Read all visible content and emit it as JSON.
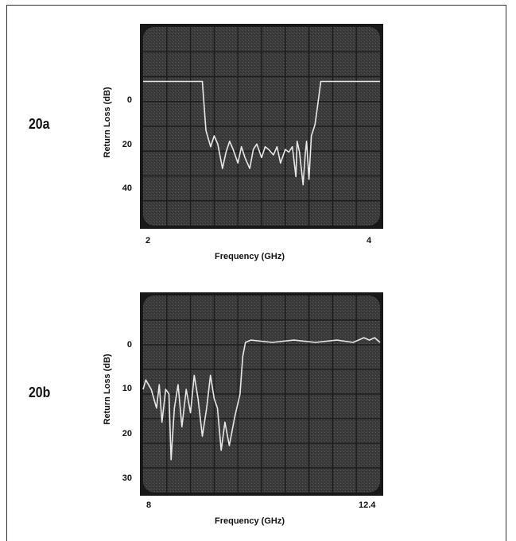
{
  "chart_data": [
    {
      "type": "line",
      "panel_label": "20a",
      "xlabel": "Frequency (GHz)",
      "ylabel": "Return Loss (dB)",
      "x_tick_labels": [
        "2",
        "4"
      ],
      "y_tick_labels": [
        "0",
        "20",
        "40"
      ],
      "xlim": [
        2,
        4
      ],
      "ylim": [
        -20,
        53
      ],
      "y_inverted": true,
      "series": [
        {
          "x": [
            2.0,
            2.3,
            2.45,
            2.5,
            2.53,
            2.57,
            2.6,
            2.63,
            2.67,
            2.7,
            2.73,
            2.76,
            2.8,
            2.83,
            2.86,
            2.9,
            2.93,
            2.96,
            3.0,
            3.03,
            3.06,
            3.1,
            3.13,
            3.16,
            3.2,
            3.23,
            3.26,
            3.29,
            3.3,
            3.32,
            3.35,
            3.37,
            3.38,
            3.4,
            3.42,
            3.45,
            3.47,
            3.5,
            3.55,
            3.6,
            3.7,
            4.0
          ],
          "y": [
            0,
            0,
            0,
            0,
            18,
            24,
            20,
            23,
            32,
            26,
            22,
            25,
            30,
            24,
            28,
            32,
            25,
            23,
            28,
            24,
            25,
            27,
            24,
            30,
            25,
            26,
            24,
            35,
            22,
            26,
            38,
            26,
            22,
            36,
            20,
            16,
            10,
            0,
            0,
            0,
            0,
            0
          ]
        }
      ]
    },
    {
      "type": "line",
      "panel_label": "20b",
      "xlabel": "Frequency (GHz)",
      "ylabel": "Return Loss (dB)",
      "x_tick_labels": [
        "8",
        "12.4"
      ],
      "y_tick_labels": [
        "0",
        "10",
        "20",
        "30"
      ],
      "xlim": [
        8,
        12.4
      ],
      "ylim": [
        -10,
        32
      ],
      "y_inverted": true,
      "series": [
        {
          "x": [
            8.0,
            8.05,
            8.15,
            8.25,
            8.3,
            8.35,
            8.42,
            8.48,
            8.52,
            8.58,
            8.65,
            8.72,
            8.8,
            8.88,
            8.95,
            9.02,
            9.1,
            9.18,
            9.25,
            9.32,
            9.38,
            9.45,
            9.52,
            9.6,
            9.7,
            9.8,
            9.85,
            9.9,
            10.0,
            10.4,
            10.8,
            11.2,
            11.6,
            11.9,
            12.1,
            12.2,
            12.3,
            12.4
          ],
          "y": [
            10,
            8,
            10,
            14,
            9,
            17,
            10,
            11,
            25,
            14,
            9,
            18,
            10,
            15,
            7,
            12,
            20,
            14,
            7,
            12,
            14,
            23,
            17,
            22,
            16,
            11,
            3,
            0,
            -0.5,
            0,
            -0.5,
            0,
            -0.5,
            0,
            -1,
            -0.5,
            -1,
            0
          ]
        }
      ]
    }
  ]
}
